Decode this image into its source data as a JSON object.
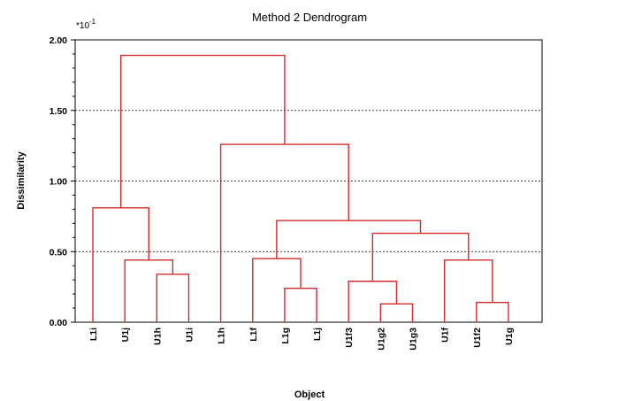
{
  "chart_data": {
    "type": "dendrogram",
    "title": "Method 2 Dendrogram",
    "xlabel": "Object",
    "ylabel": "Dissimilarity",
    "y_multiplier": "*10",
    "y_multiplier_exp": "-1",
    "ylim": [
      0,
      2.0
    ],
    "yticks": [
      "0.00",
      "0.50",
      "1.00",
      "1.50",
      "2.00"
    ],
    "ytick_values": [
      0,
      0.5,
      1.0,
      1.5,
      2.0
    ],
    "grid": "dotted-horizontal",
    "line_color": "#d42a2a",
    "leaves": [
      "L1i",
      "U1j",
      "U1h",
      "U1i",
      "L1h",
      "L1f",
      "L1g",
      "L1j",
      "U1f3",
      "U1g2",
      "U1g3",
      "U1f",
      "U1f2",
      "U1g"
    ],
    "merges": [
      {
        "id": 14,
        "left": 2,
        "right": 3,
        "height": 0.34
      },
      {
        "id": 15,
        "left": 1,
        "right": 14,
        "height": 0.44
      },
      {
        "id": 16,
        "left": 0,
        "right": 15,
        "height": 0.81
      },
      {
        "id": 17,
        "left": 6,
        "right": 7,
        "height": 0.24
      },
      {
        "id": 18,
        "left": 5,
        "right": 17,
        "height": 0.45
      },
      {
        "id": 19,
        "left": 9,
        "right": 10,
        "height": 0.13
      },
      {
        "id": 20,
        "left": 8,
        "right": 19,
        "height": 0.29
      },
      {
        "id": 21,
        "left": 12,
        "right": 13,
        "height": 0.14
      },
      {
        "id": 22,
        "left": 11,
        "right": 21,
        "height": 0.44
      },
      {
        "id": 23,
        "left": 20,
        "right": 22,
        "height": 0.63
      },
      {
        "id": 24,
        "left": 18,
        "right": 23,
        "height": 0.72
      },
      {
        "id": 25,
        "left": 4,
        "right": 24,
        "height": 1.26
      },
      {
        "id": 26,
        "left": 16,
        "right": 25,
        "height": 1.89
      }
    ]
  }
}
